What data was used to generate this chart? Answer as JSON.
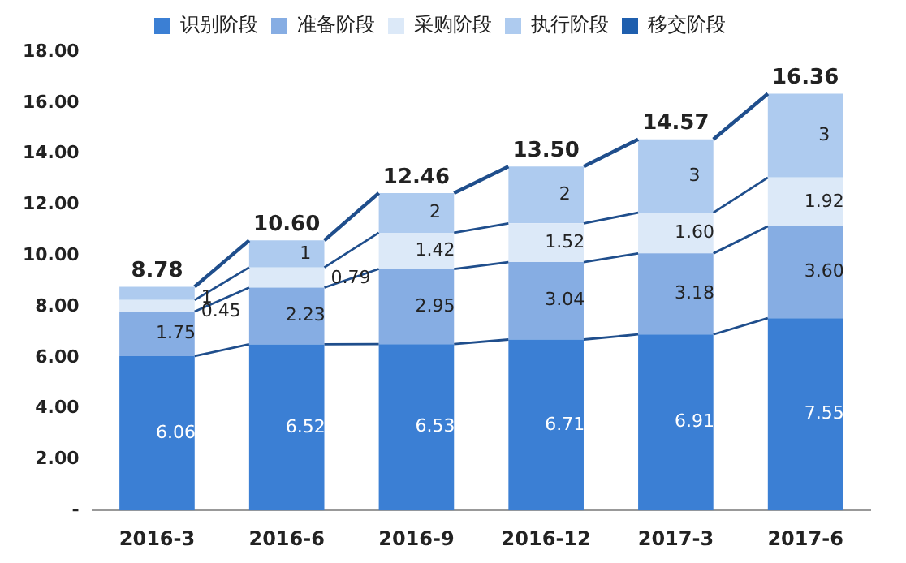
{
  "chart_data": {
    "type": "bar",
    "stacked": true,
    "legend": "top",
    "categories": [
      "2016-3",
      "2016-6",
      "2016-9",
      "2016-12",
      "2017-3",
      "2017-6"
    ],
    "series": [
      {
        "name": "识别阶段",
        "color": "#3b7fd4",
        "values": [
          6.06,
          6.52,
          6.53,
          6.71,
          6.91,
          7.55
        ],
        "value_labels": [
          "6.06",
          "6.52",
          "6.53",
          "6.71",
          "6.91",
          "7.55"
        ]
      },
      {
        "name": "准备阶段",
        "color": "#86ade3",
        "values": [
          1.75,
          2.23,
          2.95,
          3.04,
          3.18,
          3.6
        ],
        "value_labels": [
          "1.75",
          "2.23",
          "2.95",
          "3.04",
          "3.18",
          "3.60"
        ]
      },
      {
        "name": "采购阶段",
        "color": "#dce9f8",
        "values": [
          0.45,
          0.79,
          1.42,
          1.52,
          1.6,
          1.92
        ],
        "value_labels": [
          "0.45",
          "0.79",
          "1.42",
          "1.52",
          "1.60",
          "1.92"
        ]
      },
      {
        "name": "执行阶段",
        "color": "#aecbef",
        "values": [
          0.52,
          1.06,
          1.56,
          2.23,
          2.88,
          3.29
        ],
        "value_labels": [
          "1",
          "1",
          "2",
          "2",
          "3",
          "3"
        ]
      },
      {
        "name": "移交阶段",
        "color": "#1f5fae",
        "values": [
          null,
          null,
          null,
          null,
          null,
          null
        ]
      }
    ],
    "totals": [
      "8.78",
      "10.60",
      "12.46",
      "13.50",
      "14.57",
      "16.36"
    ],
    "ylim": [
      0,
      18
    ],
    "yticks": [
      {
        "value": 0,
        "label": "-"
      },
      {
        "value": 2,
        "label": "2.00"
      },
      {
        "value": 4,
        "label": "4.00"
      },
      {
        "value": 6,
        "label": "6.00"
      },
      {
        "value": 8,
        "label": "8.00"
      },
      {
        "value": 10,
        "label": "10.00"
      },
      {
        "value": 12,
        "label": "12.00"
      },
      {
        "value": 14,
        "label": "14.00"
      },
      {
        "value": 16,
        "label": "16.00"
      },
      {
        "value": 18,
        "label": "18.00"
      }
    ],
    "grid": false
  }
}
